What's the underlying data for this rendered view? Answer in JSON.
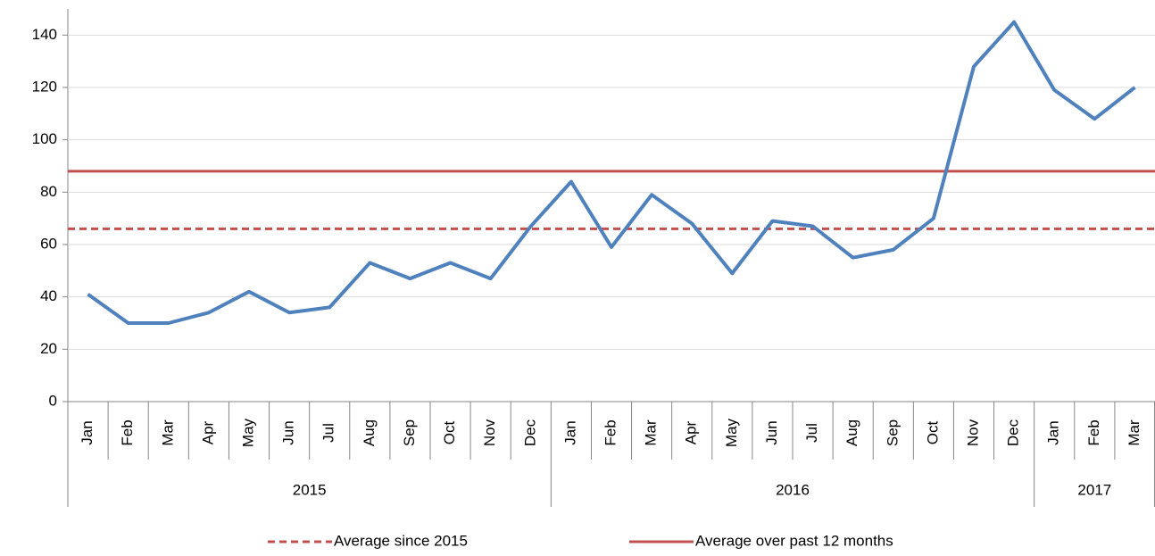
{
  "chart_data": {
    "type": "line",
    "groups": [
      {
        "name": "2015",
        "categories": [
          "Jan",
          "Feb",
          "Mar",
          "Apr",
          "May",
          "Jun",
          "Jul",
          "Aug",
          "Sep",
          "Oct",
          "Nov",
          "Dec"
        ]
      },
      {
        "name": "2016",
        "categories": [
          "Jan",
          "Feb",
          "Mar",
          "Apr",
          "May",
          "Jun",
          "Jul",
          "Aug",
          "Sep",
          "Oct",
          "Nov",
          "Dec"
        ]
      },
      {
        "name": "2017",
        "categories": [
          "Jan",
          "Feb",
          "Mar"
        ]
      }
    ],
    "series": [
      {
        "color": "#4f81bd",
        "values": [
          41,
          30,
          30,
          34,
          42,
          34,
          36,
          53,
          47,
          53,
          47,
          67,
          84,
          59,
          79,
          68,
          49,
          69,
          67,
          55,
          58,
          70,
          128,
          145,
          119,
          108,
          120
        ]
      }
    ],
    "reference_lines": [
      {
        "name": "Average since 2015",
        "value": 66,
        "color": "#c0504d",
        "dashed": true
      },
      {
        "name": "Average over past 12 months",
        "value": 88,
        "color": "#c0504d",
        "dashed": false
      }
    ],
    "ylim": [
      0,
      150
    ],
    "yticks": [
      0,
      20,
      40,
      60,
      80,
      100,
      120,
      140
    ],
    "grid": true
  }
}
